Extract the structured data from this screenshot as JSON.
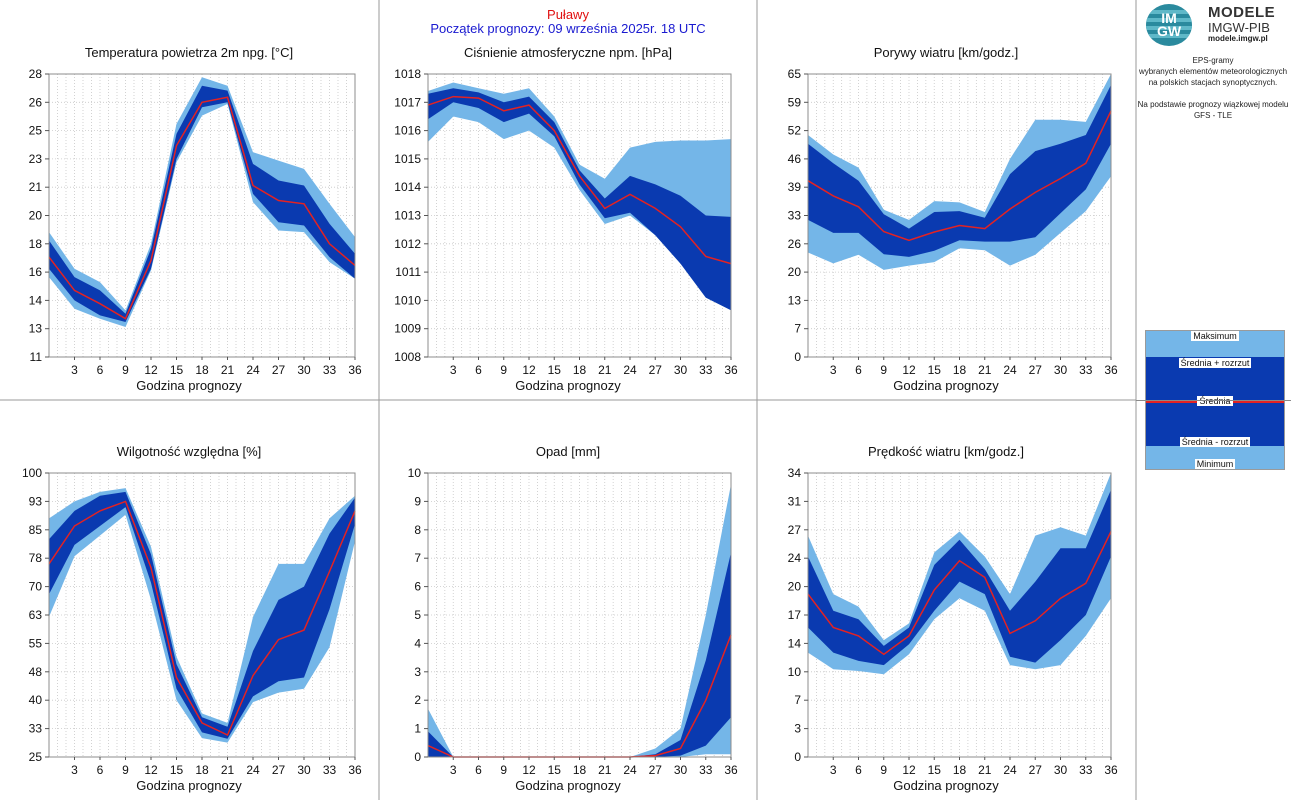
{
  "header": {
    "station": "Puławy",
    "forecast_start": "Początek prognozy: 09 września 2025r. 18 UTC"
  },
  "logo": {
    "letters_top": "IM",
    "letters_bottom": "GW",
    "title": "MODELE",
    "subtitle": "IMGW-PIB",
    "url": "modele.imgw.pl"
  },
  "info": {
    "lines1": [
      "EPS-gramy",
      "wybranych elementów meteorologicznych",
      "na polskich stacjach  synoptycznych."
    ],
    "lines2": [
      "Na podstawie prognozy wiązkowej modelu",
      "GFS - TLE"
    ]
  },
  "legend": {
    "max": "Maksimum",
    "mean_plus": "Średnia + rozrzut",
    "mean": "Średnia",
    "mean_minus": "Średnia - rozrzut",
    "min": "Minimum"
  },
  "colors": {
    "range_band": "#74b6e8",
    "spread_band": "#0a3ab0",
    "mean_line": "#e42222",
    "station_text": "#e01010",
    "start_text": "#1a1ad0"
  },
  "chart_data": [
    {
      "type": "area",
      "title": "Temperatura powietrza 2m npg. [°C]",
      "xlabel": "Godzina prognozy",
      "x": [
        0,
        3,
        6,
        9,
        12,
        15,
        18,
        21,
        24,
        27,
        30,
        33,
        36
      ],
      "xticks": [
        3,
        6,
        9,
        12,
        15,
        18,
        21,
        24,
        27,
        30,
        33,
        36
      ],
      "yticks": [
        "11",
        "13",
        "14",
        "16",
        "18",
        "20",
        "21",
        "23",
        "25",
        "26",
        "28"
      ],
      "ylim": [
        11,
        28
      ],
      "series": {
        "max": [
          18.5,
          16.3,
          15.5,
          13.8,
          17.8,
          25.0,
          27.8,
          27.3,
          23.3,
          22.8,
          22.3,
          20.2,
          18.2
        ],
        "mean_plus": [
          18.0,
          15.8,
          15.0,
          13.6,
          17.5,
          24.4,
          27.3,
          27.0,
          22.6,
          21.6,
          21.3,
          19.0,
          17.2
        ],
        "mean": [
          17.0,
          15.0,
          14.2,
          13.3,
          16.8,
          23.7,
          26.3,
          26.6,
          21.3,
          20.4,
          20.2,
          17.8,
          16.5
        ],
        "mean_minus": [
          16.3,
          14.4,
          13.5,
          13.1,
          16.3,
          22.9,
          26.0,
          26.3,
          20.8,
          19.1,
          18.9,
          17.0,
          15.7
        ],
        "min": [
          15.8,
          13.9,
          13.3,
          12.8,
          16.2,
          22.7,
          25.5,
          26.2,
          20.3,
          18.6,
          18.5,
          16.7,
          15.7
        ]
      }
    },
    {
      "type": "area",
      "title": "Ciśnienie atmosferyczne npm. [hPa]",
      "xlabel": "Godzina prognozy",
      "x": [
        0,
        3,
        6,
        9,
        12,
        15,
        18,
        21,
        24,
        27,
        30,
        33,
        36
      ],
      "xticks": [
        3,
        6,
        9,
        12,
        15,
        18,
        21,
        24,
        27,
        30,
        33,
        36
      ],
      "yticks": [
        "1008",
        "1009",
        "1010",
        "1011",
        "1012",
        "1013",
        "1014",
        "1015",
        "1016",
        "1017",
        "1018"
      ],
      "ylim": [
        1008,
        1018
      ],
      "series": {
        "max": [
          1017.4,
          1017.7,
          1017.5,
          1017.3,
          1017.5,
          1016.5,
          1014.8,
          1014.3,
          1015.4,
          1015.6,
          1015.65,
          1015.65,
          1015.7
        ],
        "mean_plus": [
          1017.3,
          1017.5,
          1017.35,
          1017.0,
          1017.2,
          1016.3,
          1014.6,
          1013.6,
          1014.4,
          1014.1,
          1013.7,
          1013.0,
          1012.95
        ],
        "mean": [
          1016.9,
          1017.2,
          1017.15,
          1016.7,
          1016.9,
          1016.0,
          1014.4,
          1013.25,
          1013.75,
          1013.25,
          1012.6,
          1011.55,
          1011.3
        ],
        "mean_minus": [
          1016.4,
          1017.0,
          1016.8,
          1016.3,
          1016.6,
          1015.8,
          1014.1,
          1012.9,
          1013.1,
          1012.3,
          1011.3,
          1010.1,
          1009.65
        ],
        "min": [
          1015.6,
          1016.5,
          1016.3,
          1015.7,
          1016.0,
          1015.4,
          1013.9,
          1012.7,
          1013.0,
          1012.3,
          1011.3,
          1010.1,
          1009.65
        ]
      }
    },
    {
      "type": "area",
      "title": "Porywy wiatru [km/godz.]",
      "xlabel": "Godzina prognozy",
      "x": [
        0,
        3,
        6,
        9,
        12,
        15,
        18,
        21,
        24,
        27,
        30,
        33,
        36
      ],
      "xticks": [
        3,
        6,
        9,
        12,
        15,
        18,
        21,
        24,
        27,
        30,
        33,
        36
      ],
      "yticks": [
        "0",
        "7",
        "13",
        "20",
        "26",
        "33",
        "39",
        "46",
        "52",
        "59",
        "65"
      ],
      "ylim": [
        0,
        65
      ],
      "series": {
        "max": [
          51.0,
          46.5,
          43.5,
          33.8,
          31.5,
          35.8,
          35.5,
          33.3,
          45.5,
          54.5,
          54.5,
          54.0,
          65.0
        ],
        "mean_plus": [
          49.0,
          44.5,
          40.5,
          32.8,
          29.5,
          33.3,
          33.5,
          32.0,
          42.0,
          47.3,
          49.0,
          51.0,
          62.5
        ],
        "mean": [
          40.5,
          37.0,
          34.5,
          28.8,
          26.8,
          28.7,
          30.2,
          29.5,
          34.0,
          37.8,
          41.0,
          44.5,
          56.5
        ],
        "mean_minus": [
          31.5,
          28.5,
          28.5,
          23.6,
          23.0,
          24.4,
          26.8,
          26.5,
          26.5,
          27.5,
          33.0,
          38.5,
          49.0
        ],
        "min": [
          24.0,
          21.5,
          23.5,
          20.0,
          21.0,
          21.8,
          25.0,
          24.5,
          21.0,
          23.5,
          28.5,
          33.5,
          41.5
        ]
      }
    },
    {
      "type": "area",
      "title": "Wilgotność względna [%]",
      "xlabel": "Godzina prognozy",
      "x": [
        0,
        3,
        6,
        9,
        12,
        15,
        18,
        21,
        24,
        27,
        30,
        33,
        36
      ],
      "xticks": [
        3,
        6,
        9,
        12,
        15,
        18,
        21,
        24,
        27,
        30,
        33,
        36
      ],
      "yticks": [
        "25",
        "33",
        "40",
        "48",
        "55",
        "63",
        "70",
        "78",
        "85",
        "93",
        "100"
      ],
      "ylim": [
        25,
        100
      ],
      "series": {
        "max": [
          88.0,
          92.5,
          95.0,
          96.0,
          80.5,
          51.5,
          36.5,
          34.0,
          62.0,
          76.0,
          76.0,
          88.0,
          94.0
        ],
        "mean_plus": [
          82.5,
          90.0,
          94.0,
          95.0,
          78.5,
          49.5,
          35.5,
          33.0,
          53.0,
          66.5,
          70.0,
          84.0,
          93.5
        ],
        "mean": [
          76.0,
          86.0,
          90.0,
          92.5,
          75.0,
          46.0,
          34.0,
          30.8,
          46.5,
          56.0,
          58.5,
          74.0,
          90.0
        ],
        "mean_minus": [
          68.0,
          81.0,
          86.0,
          91.0,
          71.0,
          43.0,
          31.5,
          29.8,
          41.0,
          45.0,
          46.0,
          64.0,
          86.5
        ],
        "min": [
          62.0,
          78.0,
          83.5,
          89.0,
          66.5,
          40.0,
          30.0,
          28.8,
          39.5,
          42.0,
          43.0,
          54.0,
          82.0
        ]
      }
    },
    {
      "type": "area",
      "title": "Opad [mm]",
      "xlabel": "Godzina prognozy",
      "x": [
        0,
        3,
        6,
        9,
        12,
        15,
        18,
        21,
        24,
        27,
        30,
        33,
        36
      ],
      "xticks": [
        3,
        6,
        9,
        12,
        15,
        18,
        21,
        24,
        27,
        30,
        33,
        36
      ],
      "yticks": [
        "0",
        "1",
        "2",
        "3",
        "4",
        "5",
        "6",
        "7",
        "8",
        "9",
        "10"
      ],
      "ylim": [
        0,
        10
      ],
      "series": {
        "max": [
          1.7,
          0,
          0,
          0,
          0,
          0,
          0,
          0,
          0,
          0.3,
          1.0,
          5.0,
          9.6
        ],
        "mean_plus": [
          0.9,
          0,
          0,
          0,
          0,
          0,
          0,
          0,
          0,
          0.1,
          0.6,
          3.4,
          7.2
        ],
        "mean": [
          0.4,
          0,
          0,
          0,
          0,
          0,
          0,
          0,
          0,
          0.05,
          0.3,
          2.0,
          4.3
        ],
        "mean_minus": [
          0,
          0,
          0,
          0,
          0,
          0,
          0,
          0,
          0,
          0,
          0.05,
          0.4,
          1.4
        ],
        "min": [
          0,
          0,
          0,
          0,
          0,
          0,
          0,
          0,
          0,
          0,
          0,
          0.1,
          0.1
        ]
      }
    },
    {
      "type": "area",
      "title": "Prędkość wiatru [km/godz.]",
      "xlabel": "Godzina prognozy",
      "x": [
        0,
        3,
        6,
        9,
        12,
        15,
        18,
        21,
        24,
        27,
        30,
        33,
        36
      ],
      "xticks": [
        3,
        6,
        9,
        12,
        15,
        18,
        21,
        24,
        27,
        30,
        33,
        36
      ],
      "yticks": [
        "0",
        "3",
        "7",
        "10",
        "14",
        "17",
        "20",
        "24",
        "27",
        "31",
        "34"
      ],
      "ylim": [
        0,
        34
      ],
      "series": {
        "max": [
          26.5,
          19.5,
          18.0,
          14.0,
          16.0,
          24.5,
          27.0,
          24.0,
          19.5,
          26.5,
          27.5,
          26.5,
          34.0
        ],
        "mean_plus": [
          24.0,
          17.5,
          16.5,
          13.3,
          15.5,
          23.0,
          26.0,
          22.5,
          17.5,
          21.0,
          25.0,
          25.0,
          32.0
        ],
        "mean": [
          19.5,
          15.5,
          14.5,
          12.3,
          14.5,
          20.0,
          23.5,
          21.5,
          14.8,
          16.3,
          19.0,
          20.8,
          27.0
        ],
        "mean_minus": [
          15.5,
          12.5,
          11.5,
          11.0,
          13.5,
          17.5,
          21.0,
          19.5,
          12.0,
          11.3,
          14.0,
          17.0,
          24.0
        ],
        "min": [
          12.5,
          10.5,
          10.3,
          9.9,
          12.3,
          16.5,
          19.0,
          17.5,
          11.0,
          10.5,
          11.0,
          14.5,
          19.0
        ]
      }
    }
  ]
}
